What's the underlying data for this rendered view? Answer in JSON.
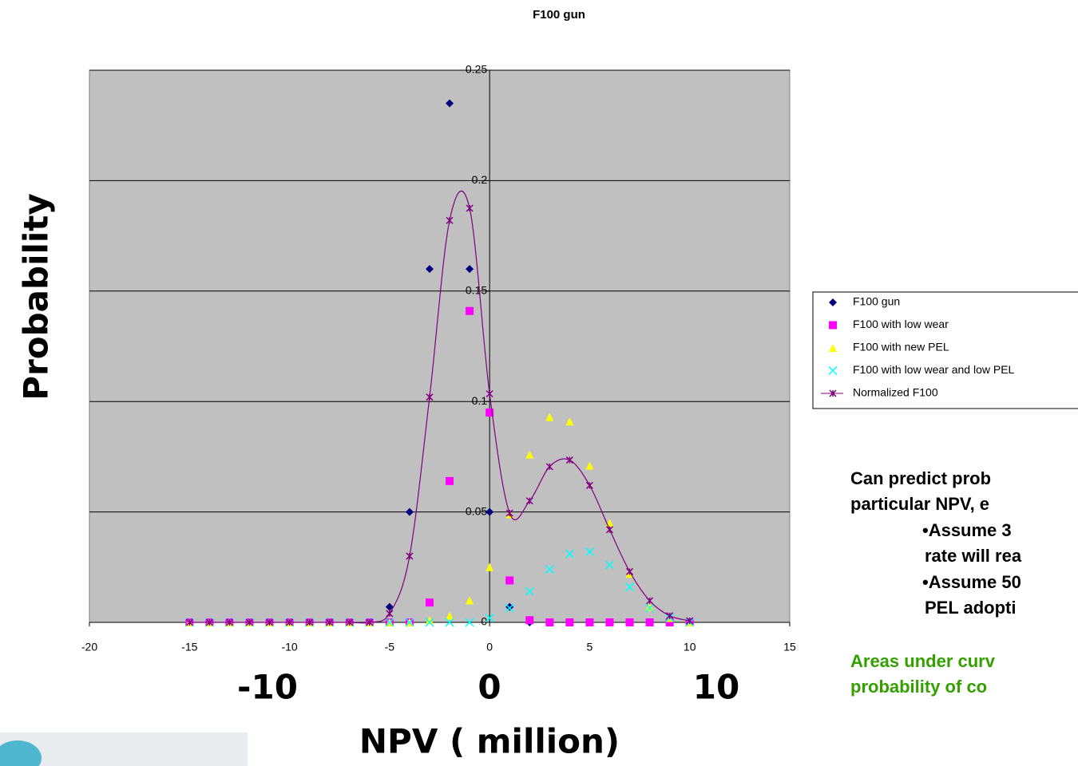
{
  "chart_data": {
    "type": "scatter",
    "title": "F100 gun",
    "x_label": "NPV ( million)",
    "y_label": "Probability",
    "x": [
      -15,
      -14,
      -13,
      -12,
      -11,
      -10,
      -9,
      -8,
      -7,
      -6,
      -5,
      -4,
      -3,
      -2,
      -1,
      0,
      1,
      2,
      3,
      4,
      5,
      6,
      7,
      8,
      9,
      10
    ],
    "series": [
      {
        "name": "F100 gun",
        "color": "#000080",
        "marker": "diamond",
        "values": [
          0,
          0,
          0,
          0,
          0,
          0,
          0,
          0,
          0,
          0,
          0.007,
          0.05,
          0.16,
          0.235,
          0.16,
          0.05,
          0.007,
          0,
          0,
          0,
          0,
          0,
          0,
          0,
          0,
          0
        ]
      },
      {
        "name": "F100 with low wear",
        "color": "#ff00ff",
        "marker": "square",
        "values": [
          0,
          0,
          0,
          0,
          0,
          0,
          0,
          0,
          0,
          0,
          0,
          0,
          0.009,
          0.064,
          0.141,
          0.095,
          0.019,
          0.001,
          0,
          0,
          0,
          0,
          0,
          0,
          0,
          0
        ]
      },
      {
        "name": "F100 with new PEL",
        "color": "#ffff00",
        "marker": "triangle",
        "values": [
          0,
          0,
          0,
          0,
          0,
          0,
          0,
          0,
          0,
          0,
          0,
          0,
          0.001,
          0.003,
          0.01,
          0.025,
          0.049,
          0.076,
          0.093,
          0.091,
          0.071,
          0.045,
          0.022,
          0.007,
          0.002,
          0
        ]
      },
      {
        "name": "F100 with low wear and low PEL",
        "color": "#00ffff",
        "marker": "cross",
        "values": [
          0,
          0,
          0,
          0,
          0,
          0,
          0,
          0,
          0,
          0,
          0,
          0,
          0,
          0,
          0,
          0.002,
          0.0065,
          0.014,
          0.024,
          0.031,
          0.032,
          0.026,
          0.016,
          0.0065,
          0.002,
          0
        ]
      },
      {
        "name": "Normalized F100",
        "color": "#800080",
        "marker": "star",
        "line": true,
        "values": [
          0,
          0,
          0,
          0,
          0,
          0,
          0,
          0,
          0,
          0,
          0.004,
          0.03,
          0.102,
          0.182,
          0.1875,
          0.1035,
          0.0495,
          0.055,
          0.0705,
          0.0735,
          0.062,
          0.042,
          0.023,
          0.0098,
          0.003,
          0.0007
        ]
      }
    ],
    "xlim": [
      -20,
      15
    ],
    "xticks": [
      -20,
      -15,
      -10,
      -5,
      0,
      5,
      10,
      15
    ],
    "ylim": [
      0,
      0.25
    ],
    "yticks": [
      0,
      0.05,
      0.1,
      0.15,
      0.2,
      0.25
    ],
    "grid": true,
    "legend": "right",
    "background": "#c0c0c0"
  },
  "slide": {
    "big_x_labels": [
      "-10",
      "0",
      "10"
    ],
    "notes": [
      "Can predict prob",
      "particular NPV, e",
      "•Assume 3",
      "rate will rea",
      "•Assume 50",
      "PEL adopti"
    ],
    "highlight": [
      "Areas under curv",
      "probability of co"
    ]
  }
}
